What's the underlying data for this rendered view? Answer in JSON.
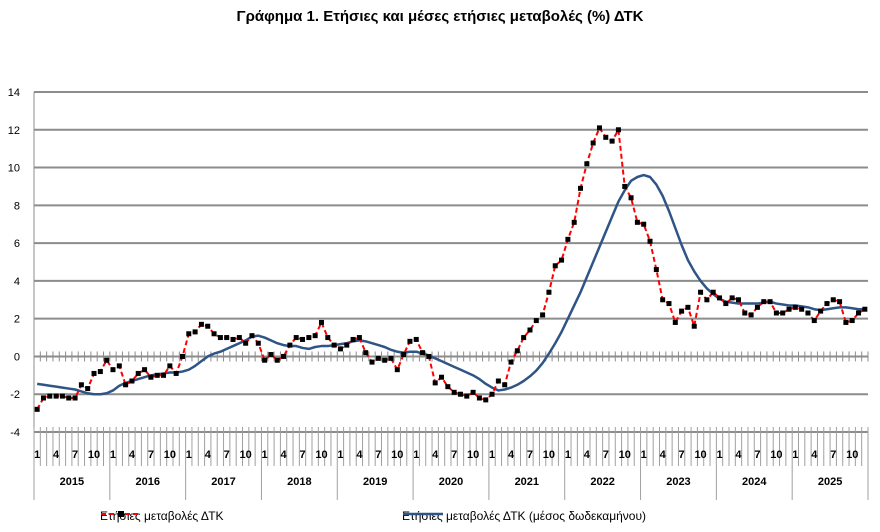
{
  "chart_data": {
    "type": "line",
    "title": "Γράφημα 1. Ετήσιες και μέσες ετήσιες μεταβολές (%) ΔΤΚ",
    "ylim": [
      -4,
      14
    ],
    "yticks": [
      -4,
      -2,
      0,
      2,
      4,
      6,
      8,
      10,
      12,
      14
    ],
    "years": [
      "2015",
      "2016",
      "2017",
      "2018",
      "2019",
      "2020",
      "2021",
      "2022",
      "2023",
      "2024",
      "2025"
    ],
    "month_tick_labels": [
      "1",
      "4",
      "7",
      "10"
    ],
    "grid": true,
    "legend_position": "bottom",
    "colors": {
      "annual": "#ff0000",
      "annual_marker": "#000000",
      "average": "#2f5486",
      "grid": "#8c8c8c"
    },
    "series": [
      {
        "name": "Ετήσιες μεταβολές ΔΤΚ",
        "style": "dashed-with-markers",
        "values": [
          -2.8,
          -2.2,
          -2.1,
          -2.1,
          -2.1,
          -2.2,
          -2.2,
          -1.5,
          -1.7,
          -0.9,
          -0.8,
          -0.2,
          -0.7,
          -0.5,
          -1.5,
          -1.3,
          -0.9,
          -0.7,
          -1.1,
          -1.0,
          -1.0,
          -0.5,
          -0.9,
          0.0,
          1.2,
          1.3,
          1.7,
          1.6,
          1.2,
          1.0,
          1.0,
          0.9,
          1.0,
          0.7,
          1.1,
          0.7,
          -0.2,
          0.1,
          -0.2,
          0.0,
          0.6,
          1.0,
          0.9,
          1.0,
          1.1,
          1.8,
          1.0,
          0.6,
          0.4,
          0.6,
          0.9,
          1.0,
          0.2,
          -0.3,
          -0.1,
          -0.2,
          -0.1,
          -0.7,
          0.1,
          0.8,
          0.9,
          0.2,
          0.0,
          -1.4,
          -1.1,
          -1.6,
          -1.9,
          -2.0,
          -2.1,
          -1.9,
          -2.2,
          -2.3,
          -2.0,
          -1.3,
          -1.5,
          -0.3,
          0.3,
          1.0,
          1.4,
          1.9,
          2.2,
          3.4,
          4.8,
          5.1,
          6.2,
          7.1,
          8.9,
          10.2,
          11.3,
          12.1,
          11.6,
          11.4,
          12.0,
          9.0,
          8.4,
          7.1,
          7.0,
          6.1,
          4.6,
          3.0,
          2.8,
          1.8,
          2.4,
          2.6,
          1.6,
          3.4,
          3.0,
          3.4,
          3.1,
          2.8,
          3.1,
          3.0,
          2.3,
          2.2,
          2.6,
          2.9,
          2.9,
          2.3,
          2.3,
          2.5,
          2.6,
          2.5,
          2.3,
          1.9,
          2.4,
          2.8,
          3.0,
          2.9,
          1.8,
          1.9,
          2.3,
          2.5
        ]
      },
      {
        "name": "Ετήσιες μεταβολές ΔΤΚ (μέσος δωδεκαμήνου)",
        "style": "solid",
        "values": [
          -1.45,
          -1.5,
          -1.55,
          -1.6,
          -1.65,
          -1.7,
          -1.75,
          -1.85,
          -1.95,
          -2.0,
          -2.0,
          -1.95,
          -1.8,
          -1.55,
          -1.4,
          -1.3,
          -1.2,
          -1.1,
          -1.0,
          -0.95,
          -0.9,
          -0.85,
          -0.85,
          -0.8,
          -0.7,
          -0.5,
          -0.25,
          0.0,
          0.15,
          0.25,
          0.4,
          0.55,
          0.7,
          0.85,
          1.05,
          1.1,
          1.0,
          0.85,
          0.7,
          0.6,
          0.55,
          0.55,
          0.45,
          0.4,
          0.5,
          0.55,
          0.55,
          0.6,
          0.65,
          0.7,
          0.8,
          0.85,
          0.8,
          0.7,
          0.6,
          0.5,
          0.35,
          0.25,
          0.2,
          0.25,
          0.25,
          0.15,
          0.05,
          -0.1,
          -0.25,
          -0.4,
          -0.55,
          -0.7,
          -0.85,
          -1.0,
          -1.2,
          -1.45,
          -1.65,
          -1.8,
          -1.75,
          -1.65,
          -1.5,
          -1.3,
          -1.05,
          -0.75,
          -0.35,
          0.15,
          0.7,
          1.3,
          2.0,
          2.7,
          3.4,
          4.2,
          5.0,
          5.8,
          6.6,
          7.4,
          8.2,
          8.8,
          9.3,
          9.5,
          9.6,
          9.5,
          9.1,
          8.5,
          7.7,
          6.8,
          5.9,
          5.1,
          4.5,
          4.0,
          3.6,
          3.3,
          3.05,
          2.9,
          2.85,
          2.8,
          2.8,
          2.8,
          2.8,
          2.85,
          2.9,
          2.8,
          2.75,
          2.7,
          2.7,
          2.65,
          2.6,
          2.5,
          2.45,
          2.5,
          2.55,
          2.6,
          2.6,
          2.55,
          2.5,
          2.5
        ]
      }
    ]
  }
}
